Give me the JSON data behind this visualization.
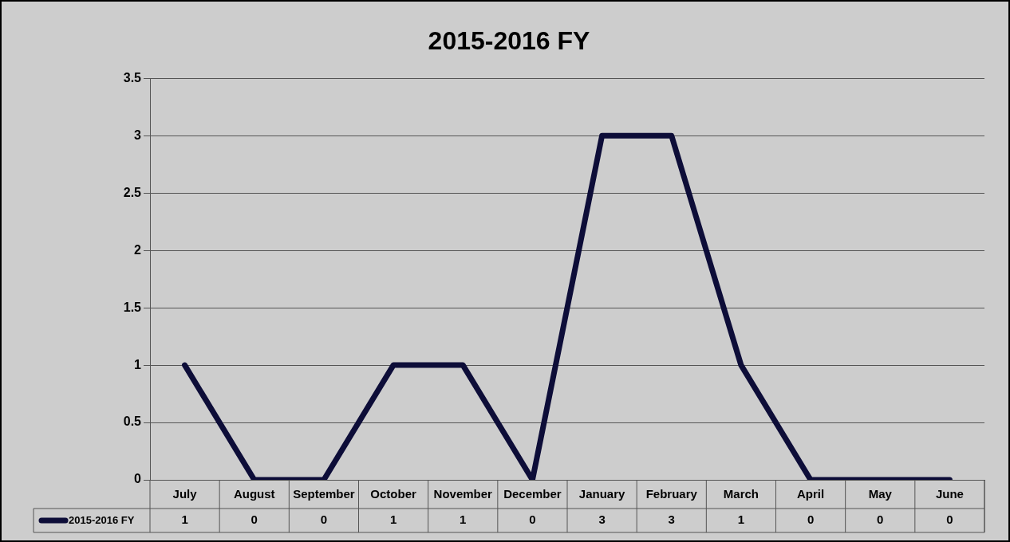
{
  "chart_data": {
    "type": "line",
    "title": "2015-2016 FY",
    "categories": [
      "July",
      "August",
      "September",
      "October",
      "November",
      "December",
      "January",
      "February",
      "March",
      "April",
      "May",
      "June"
    ],
    "series": [
      {
        "name": "2015-2016 FY",
        "color": "#0d0d38",
        "values": [
          1,
          0,
          0,
          1,
          1,
          0,
          3,
          3,
          1,
          0,
          0,
          0
        ]
      }
    ],
    "ylim": [
      0,
      3.5
    ],
    "yticks": [
      0,
      0.5,
      1,
      1.5,
      2,
      2.5,
      3,
      3.5
    ],
    "grid": "y",
    "legend": "bottom",
    "marker": "none",
    "line_style": "solid",
    "data_labels": true
  }
}
